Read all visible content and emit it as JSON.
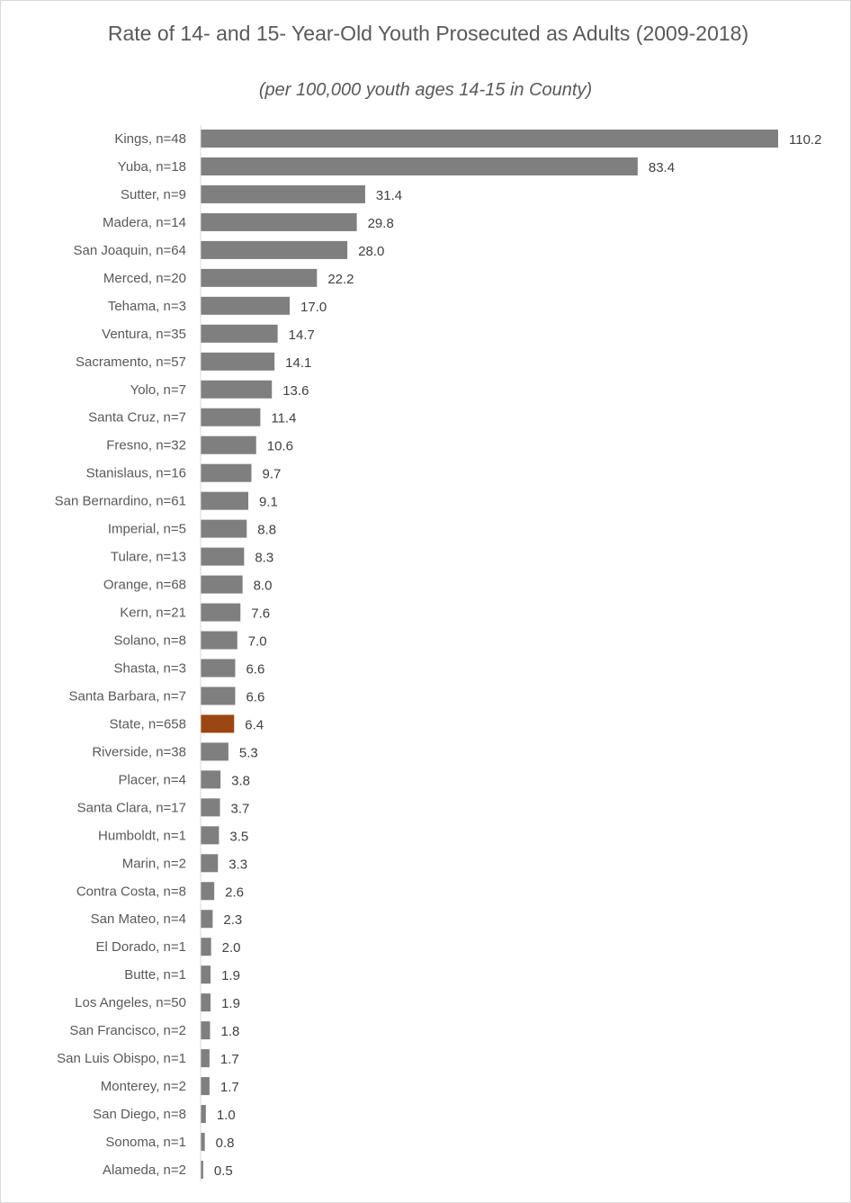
{
  "chart_data": {
    "type": "bar",
    "orientation": "horizontal",
    "title": "Rate of 14- and 15- Year-Old Youth Prosecuted as Adults (2009-2018)",
    "subtitle": "(per 100,000 youth ages 14-15 in County)",
    "xlabel": "",
    "ylabel": "",
    "xlim": [
      0,
      110.2
    ],
    "grid": false,
    "legend": "none",
    "colors": {
      "default": "#7f7f7f",
      "highlight": "#9c4611"
    },
    "highlight_category": "State, n=658",
    "categories": [
      "Kings, n=48",
      "Yuba, n=18",
      "Sutter, n=9",
      "Madera, n=14",
      "San Joaquin, n=64",
      "Merced, n=20",
      "Tehama, n=3",
      "Ventura, n=35",
      "Sacramento, n=57",
      "Yolo, n=7",
      "Santa Cruz, n=7",
      "Fresno, n=32",
      "Stanislaus, n=16",
      "San Bernardino, n=61",
      "Imperial, n=5",
      "Tulare, n=13",
      "Orange, n=68",
      "Kern, n=21",
      "Solano, n=8",
      "Shasta, n=3",
      "Santa Barbara, n=7",
      "State, n=658",
      "Riverside, n=38",
      "Placer, n=4",
      "Santa Clara, n=17",
      "Humboldt, n=1",
      "Marin, n=2",
      "Contra Costa, n=8",
      "San Mateo, n=4",
      "El Dorado, n=1",
      "Butte, n=1",
      "Los Angeles, n=50",
      "San Francisco, n=2",
      "San Luis Obispo, n=1",
      "Monterey, n=2",
      "San Diego, n=8",
      "Sonoma, n=1",
      "Alameda, n=2"
    ],
    "values": [
      110.2,
      83.4,
      31.4,
      29.8,
      28.0,
      22.2,
      17.0,
      14.7,
      14.1,
      13.6,
      11.4,
      10.6,
      9.7,
      9.1,
      8.8,
      8.3,
      8.0,
      7.6,
      7.0,
      6.6,
      6.6,
      6.4,
      5.3,
      3.8,
      3.7,
      3.5,
      3.3,
      2.6,
      2.3,
      2.0,
      1.9,
      1.9,
      1.8,
      1.7,
      1.7,
      1.0,
      0.8,
      0.5
    ],
    "value_labels": [
      "110.2",
      "83.4",
      "31.4",
      "29.8",
      "28.0",
      "22.2",
      "17.0",
      "14.7",
      "14.1",
      "13.6",
      "11.4",
      "10.6",
      "9.7",
      "9.1",
      "8.8",
      "8.3",
      "8.0",
      "7.6",
      "7.0",
      "6.6",
      "6.6",
      "6.4",
      "5.3",
      "3.8",
      "3.7",
      "3.5",
      "3.3",
      "2.6",
      "2.3",
      "2.0",
      "1.9",
      "1.9",
      "1.8",
      "1.7",
      "1.7",
      "1.0",
      "0.8",
      "0.5"
    ]
  }
}
